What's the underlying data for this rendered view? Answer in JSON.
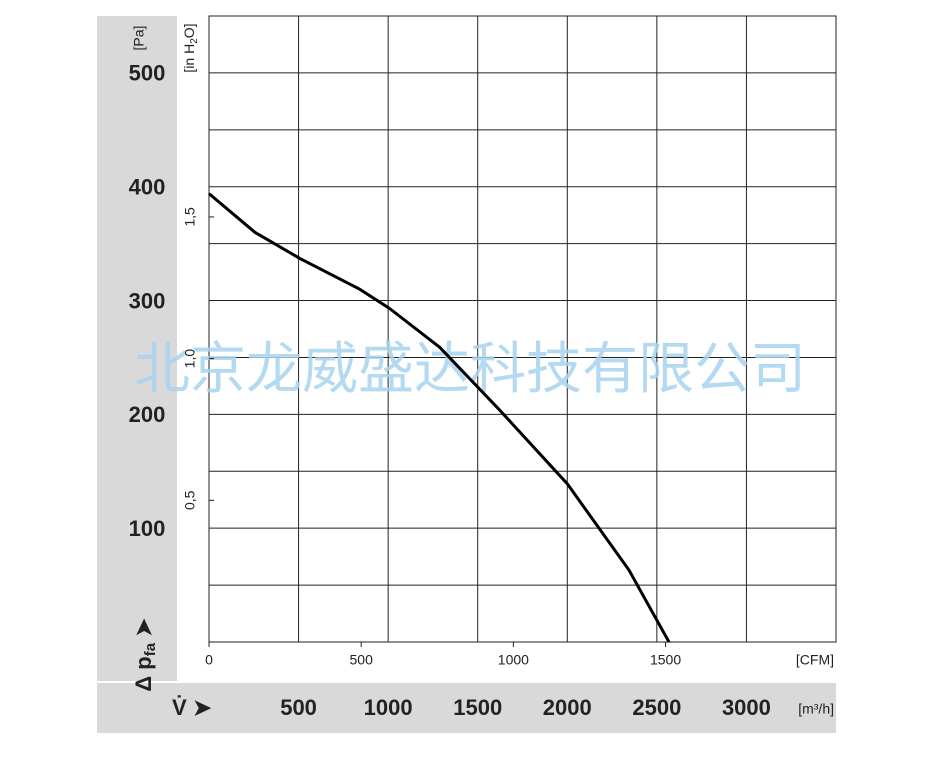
{
  "chart_data": {
    "type": "line",
    "y_label": "Δ p",
    "y_label_sub": "fa",
    "y_unit": "[Pa]",
    "y2_unit_pre": "[in H",
    "y2_unit_sub": "2",
    "y2_unit_post": "O]",
    "x_label": "V̇",
    "x_unit": "[m³/h]",
    "x2_unit": "[CFM]",
    "watermark": "北京龙威盛达科技有限公司",
    "xlim": [
      0,
      3500
    ],
    "xticks": [
      500,
      1000,
      1500,
      2000,
      2500,
      3000
    ],
    "x2lim": [
      0,
      2060
    ],
    "x2ticks": [
      0,
      500,
      1000,
      1500
    ],
    "ylim": [
      0,
      550
    ],
    "yticks": [
      100,
      200,
      300,
      400,
      500
    ],
    "y_minor_ticks": [
      50,
      150,
      250,
      350,
      450
    ],
    "y2lim": [
      0,
      2.209
    ],
    "y2ticks": [
      {
        "value": 0.5,
        "label": "0,5"
      },
      {
        "value": 1.0,
        "label": "1,0"
      },
      {
        "value": 1.5,
        "label": "1,5"
      }
    ],
    "grid": true,
    "series": [
      {
        "color": "#000000",
        "x": [
          0,
          256,
          507,
          841,
          1008,
          1287,
          1621,
          2000,
          2345,
          2568
        ],
        "values": [
          394,
          360,
          337,
          310,
          293,
          259,
          204,
          139,
          63,
          0
        ]
      }
    ]
  }
}
